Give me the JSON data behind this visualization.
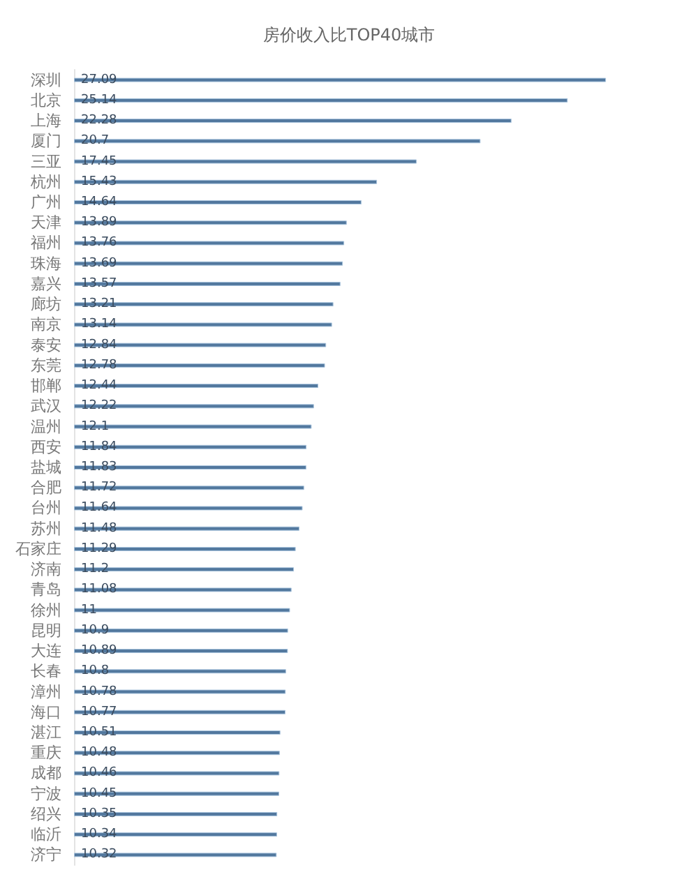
{
  "chart_data": {
    "type": "bar",
    "orientation": "horizontal",
    "title": "房价收入比TOP40城市",
    "categories": [
      "深圳",
      "北京",
      "上海",
      "厦门",
      "三亚",
      "杭州",
      "广州",
      "天津",
      "福州",
      "珠海",
      "嘉兴",
      "廊坊",
      "南京",
      "泰安",
      "东莞",
      "邯郸",
      "武汉",
      "温州",
      "西安",
      "盐城",
      "合肥",
      "台州",
      "苏州",
      "石家庄",
      "济南",
      "青岛",
      "徐州",
      "昆明",
      "大连",
      "长春",
      "漳州",
      "海口",
      "湛江",
      "重庆",
      "成都",
      "宁波",
      "绍兴",
      "临沂",
      "济宁"
    ],
    "values": [
      27.09,
      25.14,
      22.28,
      20.7,
      17.45,
      15.43,
      14.64,
      13.89,
      13.76,
      13.69,
      13.57,
      13.21,
      13.14,
      12.84,
      12.78,
      12.44,
      12.22,
      12.1,
      11.84,
      11.83,
      11.72,
      11.64,
      11.48,
      11.29,
      11.2,
      11.08,
      11,
      10.9,
      10.89,
      10.8,
      10.78,
      10.77,
      10.51,
      10.48,
      10.46,
      10.45,
      10.35,
      10.34,
      10.32
    ],
    "color": "#52789e",
    "data_labels": true,
    "tick_labels": "y"
  }
}
